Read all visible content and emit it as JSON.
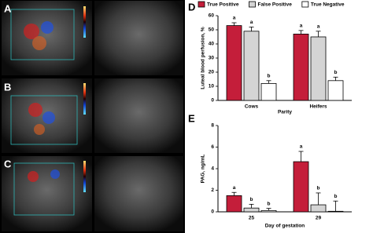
{
  "image_panels": [
    "A",
    "B",
    "C"
  ],
  "chart_data": [
    {
      "type": "bar",
      "panel": "D",
      "y_label": "Luteal blood perfusion, %",
      "x_label": "Parity",
      "categories": [
        "Cows",
        "Heifers"
      ],
      "legend": "top",
      "series": [
        {
          "name": "True Positive",
          "color": "#c41e3a",
          "values": [
            53,
            47
          ],
          "errors": [
            2,
            2.5
          ],
          "letters": [
            "a",
            "a"
          ]
        },
        {
          "name": "False Positive",
          "color": "#d4d4d4",
          "values": [
            49,
            45
          ],
          "errors": [
            3,
            4
          ],
          "letters": [
            "a",
            "a"
          ]
        },
        {
          "name": "True Negative",
          "color": "#ffffff",
          "values": [
            12,
            14
          ],
          "errors": [
            2,
            2.5
          ],
          "letters": [
            "b",
            "b"
          ]
        }
      ],
      "ylim": [
        0,
        60
      ],
      "yticks": [
        0,
        10,
        20,
        30,
        40,
        50,
        60
      ]
    },
    {
      "type": "bar",
      "panel": "E",
      "y_label": "PAG, ng/mL",
      "x_label": "Day of gestation",
      "categories": [
        "25",
        "29"
      ],
      "series": [
        {
          "name": "True Positive",
          "color": "#c41e3a",
          "values": [
            1.5,
            4.65
          ],
          "errors": [
            0.3,
            0.95
          ],
          "letters": [
            "a",
            "a"
          ]
        },
        {
          "name": "False Positive",
          "color": "#d4d4d4",
          "values": [
            0.35,
            0.65
          ],
          "errors": [
            0.35,
            1.1
          ],
          "letters": [
            "b",
            "b"
          ]
        },
        {
          "name": "True Negative",
          "color": "#ffffff",
          "values": [
            0.12,
            0.05
          ],
          "errors": [
            0.2,
            0.95
          ],
          "letters": [
            "b",
            "b"
          ]
        }
      ],
      "ylim": [
        0,
        8
      ],
      "yticks": [
        0,
        2,
        4,
        6,
        8
      ]
    }
  ]
}
